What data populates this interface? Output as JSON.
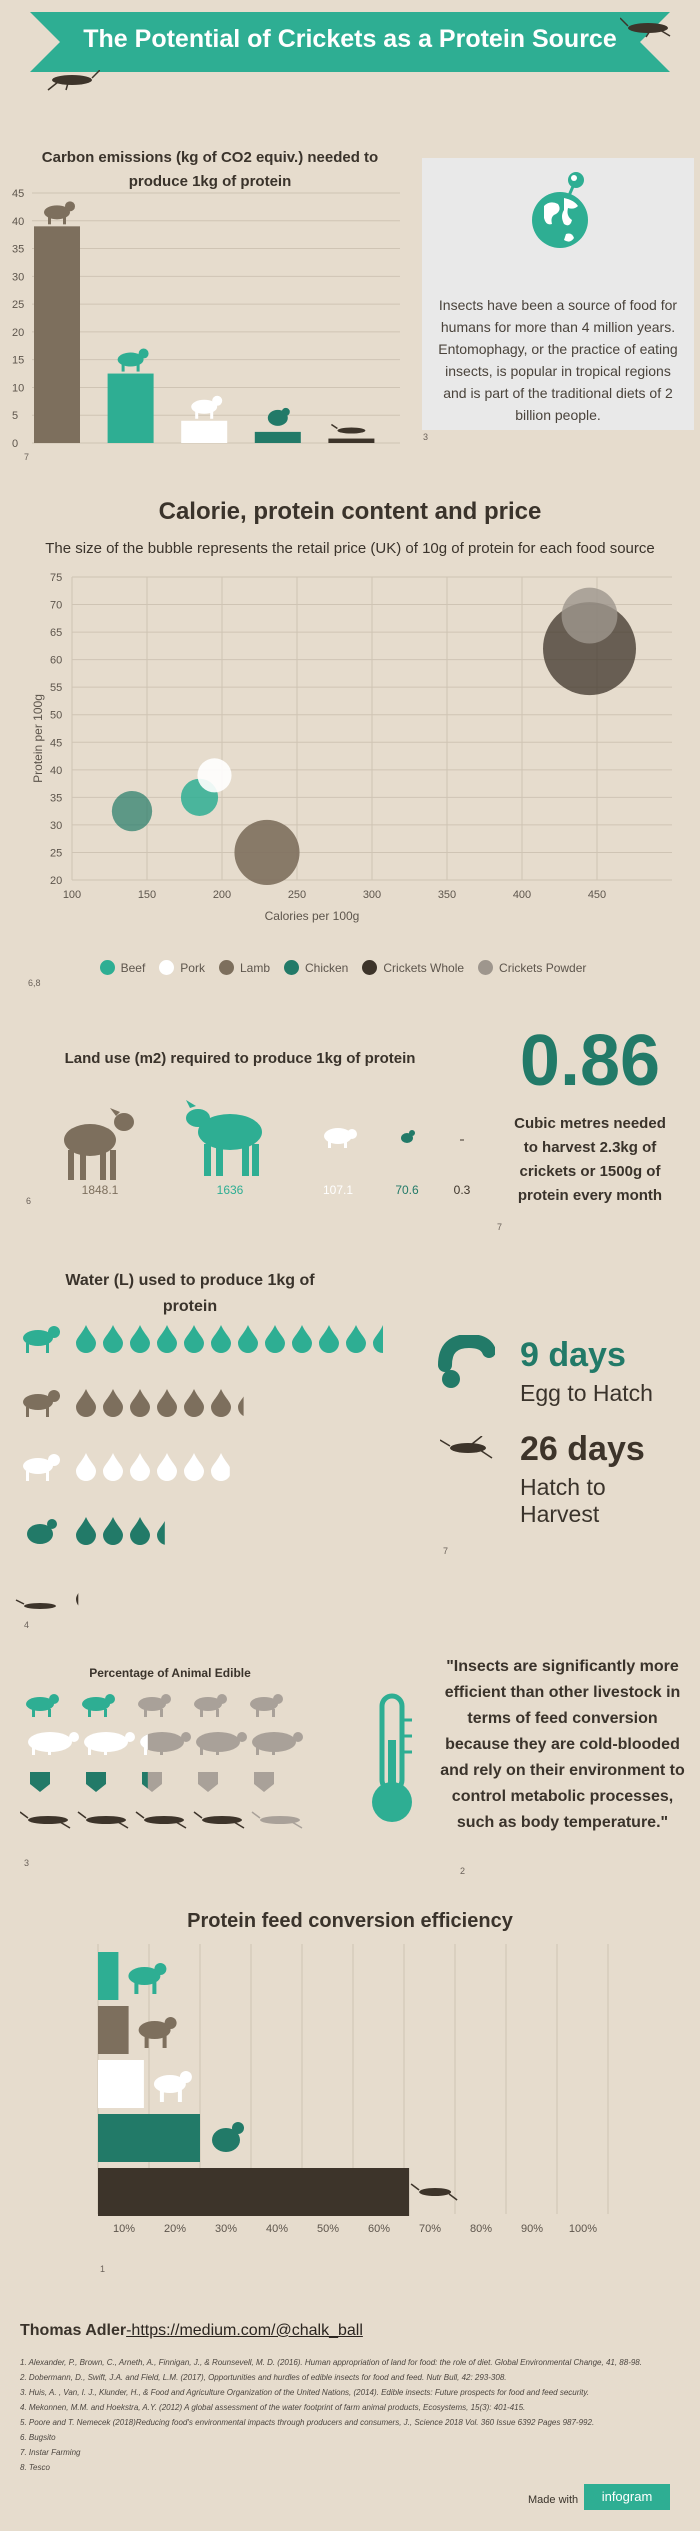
{
  "header": {
    "title": "The Potential of Crickets as a Protein Source"
  },
  "colors": {
    "background": "#e6dccd",
    "banner": "#2eae93",
    "beef": "#2eae93",
    "pork": "#ffffff",
    "lamb": "#7d6f5d",
    "chicken": "#227a68",
    "crickets_whole": "#3d342a",
    "crickets_powder": "#9e968d"
  },
  "carbon": {
    "title_line1": "Carbon emissions (kg of CO2 equiv.) needed to",
    "title_line2": "produce 1kg of protein",
    "ref": "7",
    "side_ref": "3",
    "chart_data": {
      "type": "bar",
      "categories": [
        "Lamb",
        "Beef",
        "Pork",
        "Chicken",
        "Crickets"
      ],
      "values": [
        39,
        12.5,
        4,
        2,
        0.8
      ],
      "ylim": [
        0,
        45
      ],
      "yticks": [
        "0",
        "5",
        "10",
        "15",
        "20",
        "25",
        "30",
        "35",
        "40",
        "45"
      ]
    }
  },
  "intro": {
    "text": "Insects have been a source of food for humans for more than 4 million years. Entomophagy, or the practice of eating insects, is popular in tropical regions and is part of the traditional diets of 2 billion people."
  },
  "bubble": {
    "title": "Calorie, protein content and price",
    "subtitle": "The size of the bubble represents the retail price (UK) of 10g of protein for each food source",
    "xlabel": "Calories per 100g",
    "ylabel": "Protein per 100g",
    "ref": "6,8",
    "chart_data": {
      "type": "scatter",
      "xlim": [
        100,
        500
      ],
      "ylim": [
        20,
        75
      ],
      "xticks": [
        "100",
        "150",
        "200",
        "250",
        "300",
        "350",
        "400",
        "450"
      ],
      "yticks": [
        "20",
        "25",
        "30",
        "35",
        "40",
        "45",
        "50",
        "55",
        "60",
        "65",
        "70",
        "75"
      ],
      "series": [
        {
          "name": "Beef",
          "x": 185,
          "y": 35,
          "size": 12
        },
        {
          "name": "Pork",
          "x": 195,
          "y": 39,
          "size": 11
        },
        {
          "name": "Lamb",
          "x": 230,
          "y": 25,
          "size": 21
        },
        {
          "name": "Chicken",
          "x": 140,
          "y": 32.5,
          "size": 13
        },
        {
          "name": "Crickets Whole",
          "x": 445,
          "y": 62,
          "size": 30
        },
        {
          "name": "Crickets Powder",
          "x": 445,
          "y": 68,
          "size": 18
        }
      ],
      "legend": "bottom"
    }
  },
  "land": {
    "title": "Land use (m2) required to produce 1kg of protein",
    "ref": "6",
    "values": [
      "1848.1",
      "1636",
      "107.1",
      "70.6",
      "0.3"
    ]
  },
  "volume": {
    "value": "0.86",
    "text": "Cubic metres needed to harvest 2.3kg of crickets or 1500g of protein every month",
    "ref": "7"
  },
  "water": {
    "title_line1": "Water (L) used to produce 1kg of",
    "title_line2": "protein",
    "ref": "4",
    "rows": [
      {
        "animal": "beef",
        "drops": 11.5
      },
      {
        "animal": "lamb",
        "drops": 6.3
      },
      {
        "animal": "pork",
        "drops": 5.9
      },
      {
        "animal": "chicken",
        "drops": 3.4
      },
      {
        "animal": "crickets",
        "drops": 0.1
      }
    ]
  },
  "lifecycle": {
    "egg_value": "9 days",
    "egg_label": "Egg to Hatch",
    "harvest_value": "26 days",
    "harvest_label_line1": "Hatch to",
    "harvest_label_line2": "Harvest",
    "ref": "7"
  },
  "edible": {
    "title": "Percentage of Animal Edible",
    "ref": "3",
    "rows": [
      {
        "animal": "beef",
        "fraction": 0.4
      },
      {
        "animal": "pork",
        "fraction": 0.55
      },
      {
        "animal": "chicken",
        "fraction": 0.55
      },
      {
        "animal": "crickets",
        "fraction": 0.8
      }
    ]
  },
  "quote": {
    "text": "\"Insects are significantly more efficient than other livestock in terms of feed conversion because they are cold-blooded and rely on their environment to control metabolic processes, such as body temperature.\"",
    "ref": "2"
  },
  "feed": {
    "title": "Protein feed conversion efficiency",
    "ref": "1",
    "chart_data": {
      "type": "bar",
      "orientation": "horizontal",
      "categories": [
        "Beef",
        "Lamb",
        "Pork",
        "Chicken",
        "Crickets"
      ],
      "values": [
        4,
        6,
        9,
        20,
        61
      ],
      "xlim": [
        0,
        100
      ],
      "xticks": [
        "10%",
        "20%",
        "30%",
        "40%",
        "50%",
        "60%",
        "70%",
        "80%",
        "90%",
        "100%"
      ]
    }
  },
  "author": {
    "name": "Thomas Adler",
    "link": "-https://medium.com/@chalk_ball"
  },
  "references": [
    "1. Alexander, P., Brown, C., Arneth, A., Finnigan, J., & Rounsevell, M. D. (2016). Human appropriation of land for food: the role of diet. Global Environmental Change, 41, 88-98.",
    "2. Dobermann, D., Swift, J.A. and Field, L.M. (2017), Opportunities and hurdles of edible insects for food and feed. Nutr Bull, 42: 293-308.",
    "3. Huis, A. , Van, I. J., Klunder, H., & Food and Agriculture Organization of the United Nations, (2014). Edible insects: Future prospects for food and feed security.",
    "4. Mekonnen, M.M. and Hoekstra, A.Y. (2012) A global assessment of the water footprint of farm animal products, Ecosystems, 15(3): 401-415.",
    "5. Poore and T. Nemecek (2018)Reducing food's environmental impacts through producers and consumers, J., Science 2018 Vol. 360 Issue 6392 Pages 987-992.",
    "6. Bugsito",
    "7. Instar Farming",
    "8. Tesco"
  ],
  "footer": {
    "made_with": "Made with",
    "brand": "infogram"
  }
}
